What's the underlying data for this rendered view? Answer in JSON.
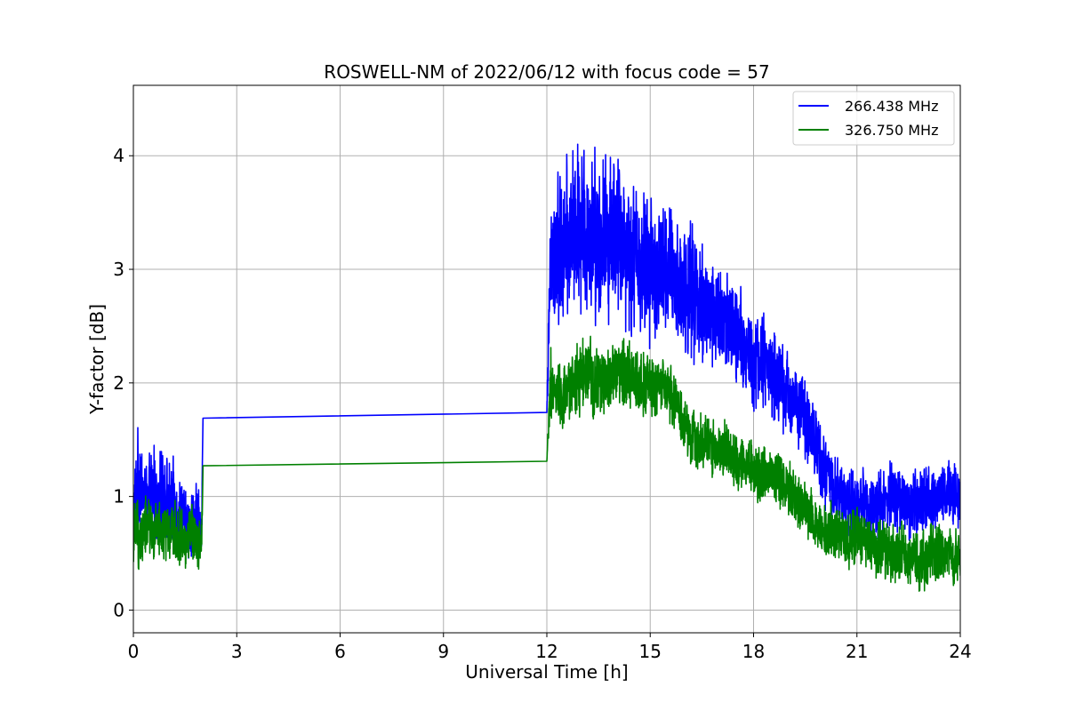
{
  "chart_data": {
    "type": "line",
    "title": "ROSWELL-NM of 2022/06/12 with focus code = 57",
    "xlabel": "Universal Time [h]",
    "ylabel": "Y-factor [dB]",
    "xlim": [
      0,
      24
    ],
    "ylim": [
      -0.2,
      4.62
    ],
    "xticks": [
      0,
      3,
      6,
      9,
      12,
      15,
      18,
      21,
      24
    ],
    "yticks": [
      0,
      1,
      2,
      3,
      4
    ],
    "grid": true,
    "legend_position": "top-right",
    "series": [
      {
        "name": "266.438 MHz",
        "color": "#0000ff",
        "x": [
          0.0,
          0.1,
          0.2,
          0.3,
          0.4,
          0.5,
          0.6,
          0.7,
          0.8,
          0.9,
          1.0,
          1.1,
          1.2,
          1.3,
          1.4,
          1.5,
          1.6,
          1.7,
          1.8,
          1.9,
          1.98,
          2.02,
          12.0,
          12.1,
          12.25,
          12.5,
          12.75,
          13.0,
          13.25,
          13.5,
          13.75,
          14.0,
          14.25,
          14.5,
          14.75,
          15.0,
          15.25,
          15.5,
          15.75,
          16.0,
          16.25,
          16.5,
          16.75,
          17.0,
          17.25,
          17.5,
          17.75,
          18.0,
          18.25,
          18.5,
          18.75,
          19.0,
          19.25,
          19.5,
          19.75,
          20.0,
          20.25,
          20.5,
          20.75,
          21.0,
          21.25,
          21.5,
          21.75,
          22.0,
          22.25,
          22.5,
          22.75,
          23.0,
          23.25,
          23.5,
          23.75,
          24.0
        ],
        "y": [
          0.8,
          1.1,
          1.2,
          1.0,
          0.9,
          1.0,
          1.1,
          0.9,
          1.0,
          1.05,
          0.95,
          0.9,
          1.0,
          0.8,
          0.9,
          0.75,
          0.7,
          0.85,
          0.8,
          0.75,
          0.7,
          1.69,
          1.74,
          3.0,
          3.1,
          3.2,
          3.3,
          3.4,
          3.35,
          3.3,
          3.3,
          3.4,
          3.2,
          3.1,
          3.05,
          3.0,
          2.95,
          3.0,
          2.9,
          2.8,
          2.8,
          2.7,
          2.6,
          2.6,
          2.5,
          2.4,
          2.3,
          2.2,
          2.2,
          2.1,
          2.0,
          1.9,
          1.8,
          1.7,
          1.5,
          1.3,
          1.1,
          1.0,
          1.0,
          0.9,
          0.95,
          0.9,
          0.95,
          1.0,
          1.0,
          0.9,
          0.95,
          1.0,
          1.0,
          1.05,
          1.0,
          1.0
        ],
        "amp": [
          0.4,
          0.5,
          0.5,
          0.45,
          0.4,
          0.45,
          0.5,
          0.4,
          0.45,
          0.45,
          0.45,
          0.4,
          0.4,
          0.4,
          0.4,
          0.35,
          0.35,
          0.4,
          0.4,
          0.35,
          0.3,
          0,
          0,
          0.7,
          0.8,
          0.8,
          0.85,
          0.9,
          0.9,
          0.85,
          0.85,
          0.85,
          0.8,
          0.8,
          0.75,
          0.75,
          0.7,
          0.7,
          0.7,
          0.7,
          0.65,
          0.65,
          0.6,
          0.6,
          0.55,
          0.55,
          0.55,
          0.5,
          0.5,
          0.45,
          0.45,
          0.45,
          0.4,
          0.4,
          0.4,
          0.4,
          0.35,
          0.35,
          0.35,
          0.35,
          0.35,
          0.35,
          0.35,
          0.35,
          0.35,
          0.35,
          0.35,
          0.35,
          0.35,
          0.35,
          0.35,
          0.35
        ]
      },
      {
        "name": "326.750 MHz",
        "color": "#008000",
        "x": [
          0.0,
          0.1,
          0.2,
          0.3,
          0.4,
          0.5,
          0.6,
          0.7,
          0.8,
          0.9,
          1.0,
          1.1,
          1.2,
          1.3,
          1.4,
          1.5,
          1.6,
          1.7,
          1.8,
          1.9,
          1.98,
          2.02,
          12.0,
          12.1,
          12.25,
          12.5,
          12.75,
          13.0,
          13.25,
          13.5,
          13.75,
          14.0,
          14.25,
          14.5,
          14.75,
          15.0,
          15.25,
          15.5,
          15.75,
          16.0,
          16.25,
          16.5,
          16.75,
          17.0,
          17.25,
          17.5,
          17.75,
          18.0,
          18.25,
          18.5,
          18.75,
          19.0,
          19.25,
          19.5,
          19.75,
          20.0,
          20.25,
          20.5,
          20.75,
          21.0,
          21.25,
          21.5,
          21.75,
          22.0,
          22.25,
          22.5,
          22.75,
          23.0,
          23.25,
          23.5,
          23.75,
          24.0
        ],
        "y": [
          0.65,
          0.7,
          0.6,
          0.7,
          0.75,
          0.7,
          0.65,
          0.7,
          0.65,
          0.7,
          0.7,
          0.65,
          0.7,
          0.6,
          0.65,
          0.6,
          0.65,
          0.7,
          0.65,
          0.6,
          0.6,
          1.27,
          1.31,
          2.0,
          1.9,
          1.85,
          2.0,
          2.05,
          2.05,
          2.0,
          2.0,
          2.1,
          2.1,
          2.05,
          2.0,
          1.95,
          2.0,
          1.9,
          1.85,
          1.6,
          1.5,
          1.5,
          1.45,
          1.4,
          1.4,
          1.3,
          1.3,
          1.25,
          1.2,
          1.2,
          1.15,
          1.1,
          1.0,
          0.9,
          0.8,
          0.7,
          0.7,
          0.65,
          0.6,
          0.65,
          0.6,
          0.55,
          0.55,
          0.5,
          0.5,
          0.45,
          0.45,
          0.45,
          0.5,
          0.5,
          0.45,
          0.45
        ],
        "amp": [
          0.35,
          0.35,
          0.35,
          0.3,
          0.3,
          0.3,
          0.3,
          0.3,
          0.3,
          0.3,
          0.3,
          0.3,
          0.3,
          0.3,
          0.3,
          0.3,
          0.3,
          0.3,
          0.3,
          0.3,
          0.25,
          0,
          0,
          0.35,
          0.35,
          0.35,
          0.35,
          0.4,
          0.4,
          0.35,
          0.35,
          0.35,
          0.35,
          0.35,
          0.35,
          0.35,
          0.3,
          0.3,
          0.3,
          0.3,
          0.3,
          0.3,
          0.3,
          0.3,
          0.3,
          0.3,
          0.3,
          0.3,
          0.3,
          0.3,
          0.3,
          0.3,
          0.3,
          0.3,
          0.3,
          0.3,
          0.3,
          0.3,
          0.3,
          0.3,
          0.3,
          0.3,
          0.3,
          0.3,
          0.3,
          0.3,
          0.3,
          0.3,
          0.3,
          0.3,
          0.3,
          0.3
        ]
      }
    ]
  }
}
